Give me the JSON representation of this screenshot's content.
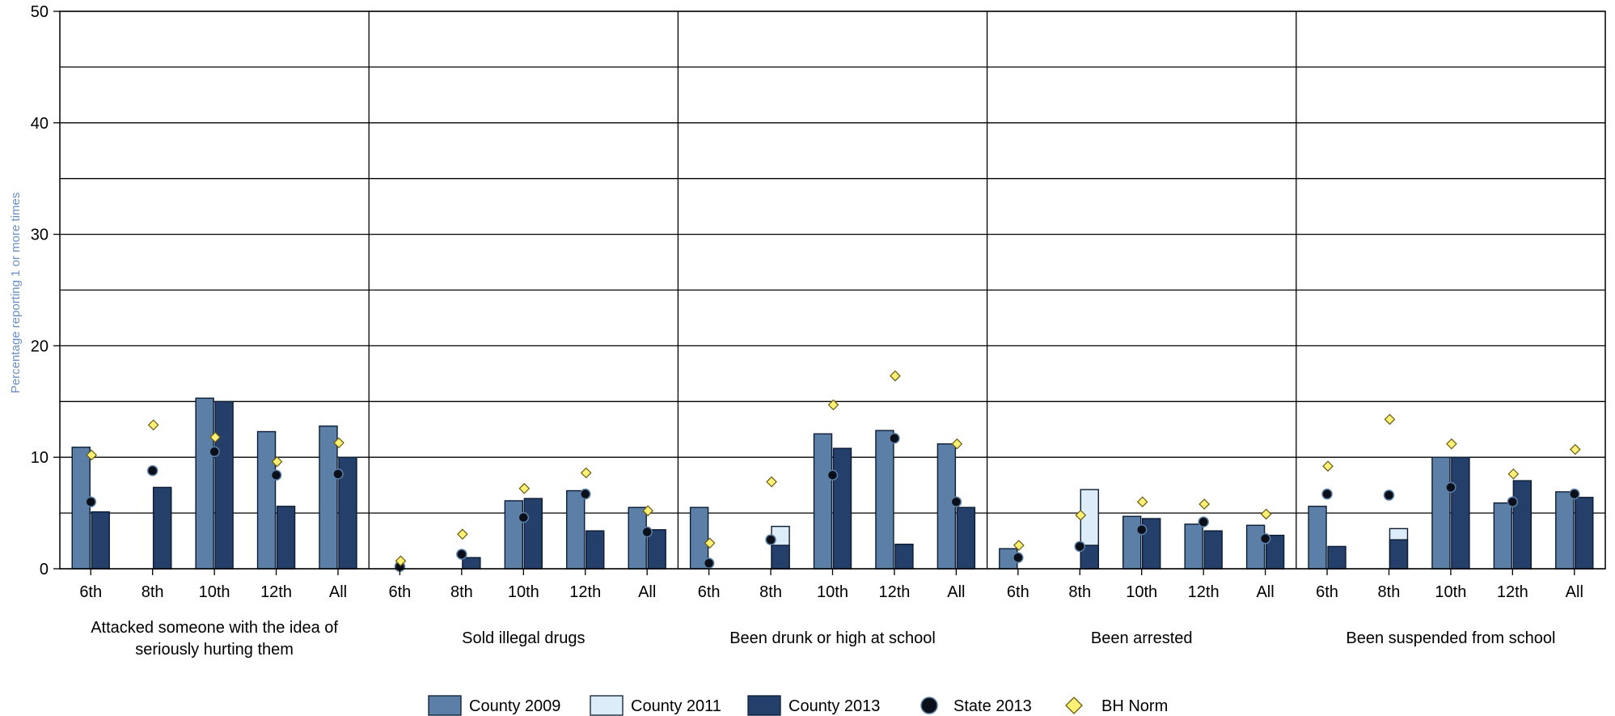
{
  "chart_data": {
    "type": "bar",
    "ylabel": "Percentage reporting 1 or more times",
    "ylim": [
      0,
      50
    ],
    "yticks": [
      0,
      10,
      20,
      30,
      40,
      50
    ],
    "grid": true,
    "legend_placement": "bottom",
    "subcategories": [
      "6th",
      "8th",
      "10th",
      "12th",
      "All"
    ],
    "groups": [
      "Attacked someone with the idea of seriously hurting them",
      "Sold illegal drugs",
      "Been drunk or high at school",
      "Been arrested",
      "Been suspended from school"
    ],
    "series": [
      {
        "name": "County 2009",
        "kind": "bar",
        "color": "#5b7fa6",
        "values": [
          [
            10.9,
            null,
            15.3,
            12.3,
            12.8
          ],
          [
            null,
            null,
            6.1,
            7.0,
            5.5
          ],
          [
            5.5,
            null,
            12.1,
            12.4,
            11.2
          ],
          [
            1.8,
            null,
            4.7,
            4.0,
            3.9
          ],
          [
            5.6,
            null,
            10.0,
            5.9,
            6.9
          ]
        ]
      },
      {
        "name": "County 2011",
        "kind": "bar",
        "color": "#dcecf8",
        "values": [
          [
            null,
            7.1,
            null,
            null,
            null
          ],
          [
            null,
            null,
            null,
            null,
            null
          ],
          [
            null,
            3.8,
            null,
            null,
            null
          ],
          [
            null,
            7.1,
            null,
            null,
            null
          ],
          [
            null,
            3.6,
            null,
            null,
            null
          ]
        ]
      },
      {
        "name": "County 2013",
        "kind": "bar",
        "color": "#243f69",
        "values": [
          [
            5.1,
            7.3,
            15.0,
            5.6,
            10.0
          ],
          [
            null,
            1.0,
            6.3,
            3.4,
            3.5
          ],
          [
            null,
            2.1,
            10.8,
            2.2,
            5.5
          ],
          [
            null,
            2.1,
            4.5,
            3.4,
            3.0
          ],
          [
            2.0,
            2.6,
            10.0,
            7.9,
            6.4
          ]
        ]
      },
      {
        "name": "State 2013",
        "kind": "dot",
        "color": "#0a0f1a",
        "values": [
          [
            6.0,
            8.8,
            10.5,
            8.4,
            8.5
          ],
          [
            0.2,
            1.3,
            4.6,
            6.7,
            3.3
          ],
          [
            0.5,
            2.6,
            8.4,
            11.7,
            6.0
          ],
          [
            1.0,
            2.0,
            3.5,
            4.2,
            2.7
          ],
          [
            6.7,
            6.6,
            7.3,
            6.0,
            6.7
          ]
        ]
      },
      {
        "name": "BH Norm",
        "kind": "diamond",
        "color": "#fff176",
        "values": [
          [
            10.2,
            12.9,
            11.8,
            9.6,
            11.3
          ],
          [
            0.7,
            3.1,
            7.2,
            8.6,
            5.2
          ],
          [
            2.3,
            7.8,
            14.7,
            17.3,
            11.2
          ],
          [
            2.1,
            4.8,
            6.0,
            5.8,
            4.9
          ],
          [
            9.2,
            13.4,
            11.2,
            8.5,
            10.7
          ]
        ]
      }
    ]
  }
}
